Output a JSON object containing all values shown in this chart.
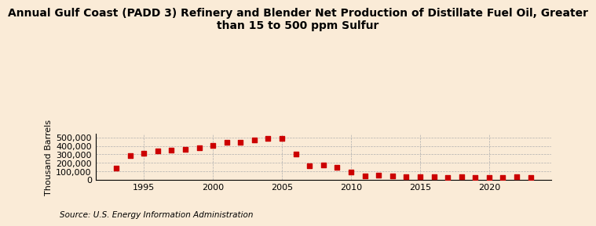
{
  "title": "Annual Gulf Coast (PADD 3) Refinery and Blender Net Production of Distillate Fuel Oil, Greater\nthan 15 to 500 ppm Sulfur",
  "ylabel": "Thousand Barrels",
  "source": "Source: U.S. Energy Information Administration",
  "background_color": "#faebd7",
  "marker_color": "#cc0000",
  "years": [
    1993,
    1994,
    1995,
    1996,
    1997,
    1998,
    1999,
    2000,
    2001,
    2002,
    2003,
    2004,
    2005,
    2006,
    2007,
    2008,
    2009,
    2010,
    2011,
    2012,
    2013,
    2014,
    2015,
    2016,
    2017,
    2018,
    2019,
    2020,
    2021,
    2022,
    2023
  ],
  "values": [
    135000,
    290000,
    310000,
    345000,
    350000,
    355000,
    375000,
    410000,
    440000,
    445000,
    470000,
    490000,
    485000,
    305000,
    165000,
    170000,
    150000,
    93000,
    47000,
    50000,
    47000,
    35000,
    35000,
    40000,
    30000,
    35000,
    25000,
    25000,
    30000,
    35000,
    27000
  ],
  "ylim": [
    0,
    540000
  ],
  "yticks": [
    0,
    100000,
    200000,
    300000,
    400000,
    500000
  ],
  "xlim": [
    1991.5,
    2024.5
  ],
  "xticks": [
    1995,
    2000,
    2005,
    2010,
    2015,
    2020
  ],
  "title_fontsize": 10,
  "axis_fontsize": 8,
  "source_fontsize": 7.5,
  "marker_size": 16
}
